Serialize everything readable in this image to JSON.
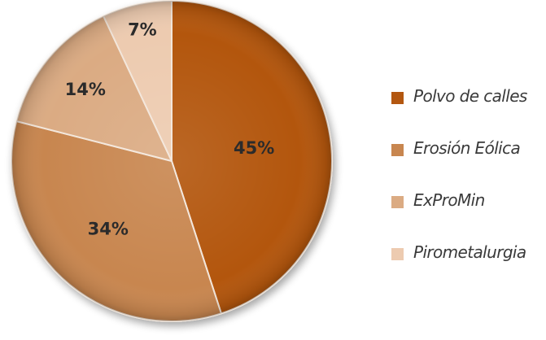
{
  "chart_data": {
    "type": "pie",
    "title": "",
    "slices": [
      {
        "label": "Polvo de calles",
        "value": 45,
        "value_label": "45%",
        "color": "#B35710"
      },
      {
        "label": "Erosión Eólica",
        "value": 34,
        "value_label": "34%",
        "color": "#C8864F"
      },
      {
        "label": "ExProMin",
        "value": 14,
        "value_label": "14%",
        "color": "#DBAB83"
      },
      {
        "label": "Pirometalurgia",
        "value": 7,
        "value_label": "7%",
        "color": "#EDCBB0"
      }
    ],
    "legend_placement": "right",
    "start_angle": "12 o'clock",
    "direction": "clockwise"
  },
  "legend": {
    "items": [
      {
        "label": "Polvo de calles",
        "color": "#B35710"
      },
      {
        "label": "Erosión Eólica",
        "color": "#C8864F"
      },
      {
        "label": "ExProMin",
        "color": "#DBAB83"
      },
      {
        "label": "Pirometalurgia",
        "color": "#EDCBB0"
      }
    ]
  }
}
